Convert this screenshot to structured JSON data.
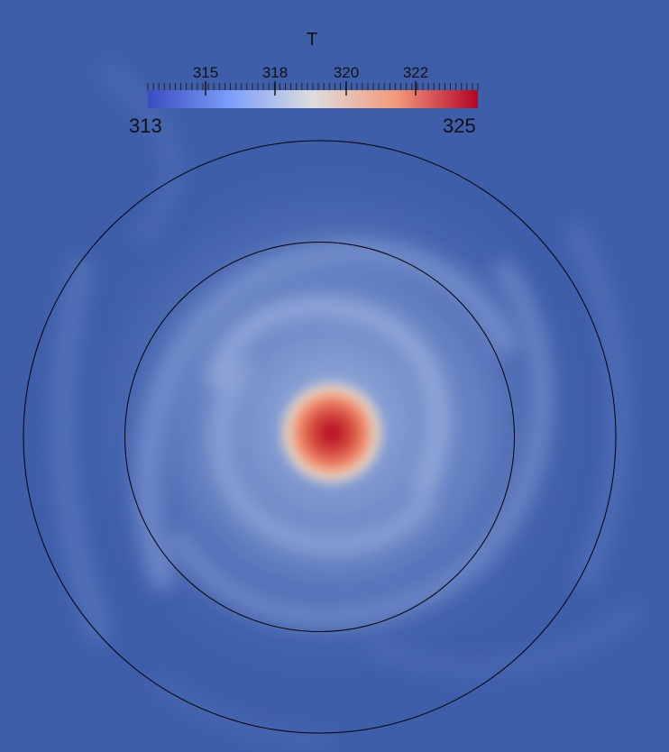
{
  "colorbar": {
    "title": "T",
    "min_label": "313",
    "max_label": "325",
    "range": [
      313,
      325
    ],
    "tick_labels": [
      "315",
      "318",
      "320",
      "322"
    ],
    "colormap": "cool-to-warm",
    "colors": {
      "low": "#3b4cc0",
      "mid": "#dddddd",
      "high": "#b40426"
    }
  },
  "field": {
    "background_color": "#3f5eaa",
    "vortex_core_color": "#b40426"
  }
}
